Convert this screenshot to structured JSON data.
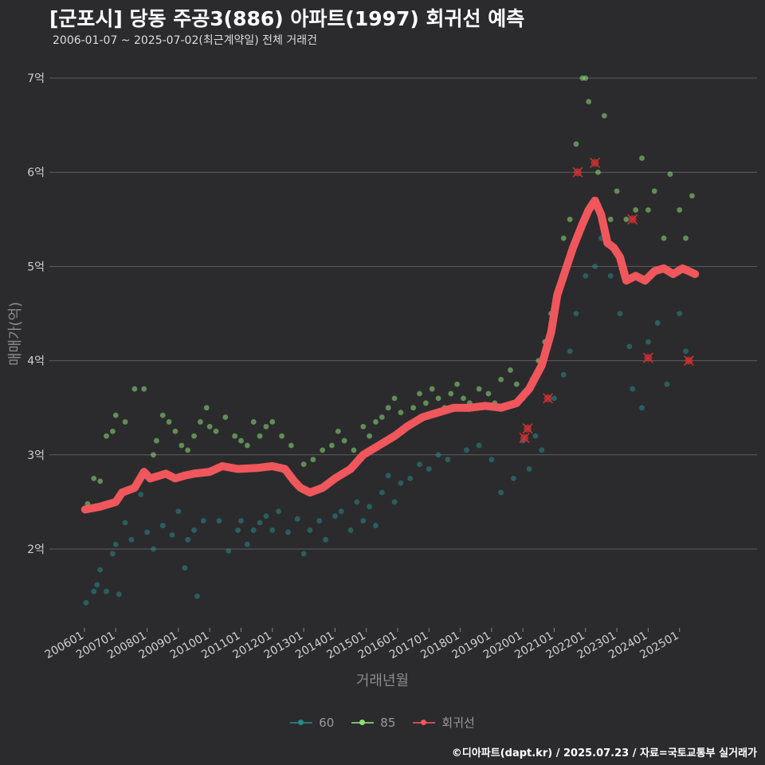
{
  "title": "[군포시] 당동 주공3(886) 아파트(1997) 회귀선 예측",
  "subtitle": "2006-01-07 ~ 2025-07-02(최근계약일) 전체 거래건",
  "caption": "©디아파트(dapt.kr) / 2025.07.23 / 자료=국토교통부 실거래가",
  "colors": {
    "background": "#2b2b2d",
    "grid": "#5e5e5e",
    "s60": "#2a8a8c",
    "s85": "#8ee07a",
    "regression": "#f0575c",
    "outlier": "#d43030"
  },
  "chart_data": {
    "type": "scatter",
    "xlabel": "거래년월",
    "ylabel": "매매가(억)",
    "x_ticks": [
      "200601",
      "200701",
      "200801",
      "200901",
      "201001",
      "201101",
      "201201",
      "201301",
      "201401",
      "201501",
      "201601",
      "201701",
      "201801",
      "201901",
      "202001",
      "202101",
      "202201",
      "202301",
      "202401",
      "202501"
    ],
    "y_ticks": [
      "2억",
      "3억",
      "4억",
      "5억",
      "6억",
      "7억"
    ],
    "y_tick_values": [
      2,
      3,
      4,
      5,
      6,
      7
    ],
    "xlim": [
      "2005-11",
      "2026-06"
    ],
    "ylim": [
      1.15,
      7.35
    ],
    "grid": "horizontal",
    "legend_position": "bottom",
    "legend": [
      "60",
      "85",
      "회귀선"
    ],
    "series": [
      {
        "name": "60",
        "points": [
          [
            2006.05,
            1.43
          ],
          [
            2006.3,
            1.55
          ],
          [
            2006.4,
            1.62
          ],
          [
            2006.5,
            1.78
          ],
          [
            2006.7,
            1.55
          ],
          [
            2006.9,
            1.95
          ],
          [
            2007.0,
            2.05
          ],
          [
            2007.1,
            1.52
          ],
          [
            2007.3,
            2.28
          ],
          [
            2007.5,
            2.1
          ],
          [
            2007.8,
            2.58
          ],
          [
            2008.0,
            2.18
          ],
          [
            2008.2,
            2.0
          ],
          [
            2008.5,
            2.25
          ],
          [
            2008.8,
            2.15
          ],
          [
            2009.0,
            2.4
          ],
          [
            2009.2,
            1.8
          ],
          [
            2009.3,
            2.1
          ],
          [
            2009.5,
            2.2
          ],
          [
            2009.6,
            1.5
          ],
          [
            2009.8,
            2.3
          ],
          [
            2010.3,
            2.3
          ],
          [
            2010.6,
            1.98
          ],
          [
            2010.9,
            2.2
          ],
          [
            2011.0,
            2.3
          ],
          [
            2011.2,
            2.05
          ],
          [
            2011.4,
            2.2
          ],
          [
            2011.6,
            2.28
          ],
          [
            2011.8,
            2.35
          ],
          [
            2012.0,
            2.2
          ],
          [
            2012.2,
            2.4
          ],
          [
            2012.5,
            2.18
          ],
          [
            2012.8,
            2.32
          ],
          [
            2013.0,
            1.95
          ],
          [
            2013.2,
            2.2
          ],
          [
            2013.5,
            2.3
          ],
          [
            2013.7,
            2.1
          ],
          [
            2014.0,
            2.35
          ],
          [
            2014.2,
            2.4
          ],
          [
            2014.5,
            2.2
          ],
          [
            2014.7,
            2.5
          ],
          [
            2014.9,
            2.3
          ],
          [
            2015.1,
            2.45
          ],
          [
            2015.3,
            2.25
          ],
          [
            2015.5,
            2.6
          ],
          [
            2015.7,
            2.78
          ],
          [
            2015.9,
            2.5
          ],
          [
            2016.1,
            2.7
          ],
          [
            2016.4,
            2.75
          ],
          [
            2016.7,
            2.9
          ],
          [
            2017.0,
            2.85
          ],
          [
            2017.3,
            3.0
          ],
          [
            2017.6,
            2.95
          ],
          [
            2018.2,
            3.05
          ],
          [
            2018.6,
            3.1
          ],
          [
            2019.0,
            2.95
          ],
          [
            2019.3,
            2.6
          ],
          [
            2019.7,
            2.75
          ],
          [
            2020.0,
            3.15
          ],
          [
            2020.2,
            2.85
          ],
          [
            2020.4,
            3.2
          ],
          [
            2020.6,
            3.05
          ],
          [
            2021.0,
            3.6
          ],
          [
            2021.3,
            3.85
          ],
          [
            2021.5,
            4.1
          ],
          [
            2021.7,
            4.5
          ],
          [
            2022.0,
            4.9
          ],
          [
            2022.3,
            5.0
          ],
          [
            2022.5,
            5.3
          ],
          [
            2022.8,
            4.9
          ],
          [
            2023.1,
            4.5
          ],
          [
            2023.4,
            4.15
          ],
          [
            2023.5,
            3.7
          ],
          [
            2023.8,
            3.5
          ],
          [
            2024.0,
            4.2
          ],
          [
            2024.3,
            4.4
          ],
          [
            2024.6,
            3.75
          ],
          [
            2025.0,
            4.5
          ],
          [
            2025.2,
            4.1
          ]
        ]
      },
      {
        "name": "85",
        "points": [
          [
            2006.1,
            2.48
          ],
          [
            2006.3,
            2.75
          ],
          [
            2006.5,
            2.72
          ],
          [
            2006.7,
            3.2
          ],
          [
            2006.9,
            3.25
          ],
          [
            2007.0,
            3.42
          ],
          [
            2007.3,
            3.35
          ],
          [
            2007.6,
            3.7
          ],
          [
            2007.9,
            3.7
          ],
          [
            2008.2,
            3.0
          ],
          [
            2008.3,
            3.15
          ],
          [
            2008.5,
            3.42
          ],
          [
            2008.7,
            3.35
          ],
          [
            2008.9,
            3.25
          ],
          [
            2009.1,
            3.1
          ],
          [
            2009.3,
            3.05
          ],
          [
            2009.5,
            3.2
          ],
          [
            2009.7,
            3.35
          ],
          [
            2009.9,
            3.5
          ],
          [
            2010.0,
            3.3
          ],
          [
            2010.2,
            3.25
          ],
          [
            2010.5,
            3.4
          ],
          [
            2010.8,
            3.2
          ],
          [
            2011.0,
            3.15
          ],
          [
            2011.2,
            3.1
          ],
          [
            2011.4,
            3.35
          ],
          [
            2011.6,
            3.2
          ],
          [
            2011.8,
            3.3
          ],
          [
            2012.0,
            3.35
          ],
          [
            2012.3,
            3.2
          ],
          [
            2012.6,
            3.1
          ],
          [
            2013.0,
            2.9
          ],
          [
            2013.3,
            2.95
          ],
          [
            2013.6,
            3.05
          ],
          [
            2013.9,
            3.1
          ],
          [
            2014.1,
            3.25
          ],
          [
            2014.3,
            3.15
          ],
          [
            2014.6,
            3.05
          ],
          [
            2014.9,
            3.3
          ],
          [
            2015.1,
            3.2
          ],
          [
            2015.3,
            3.35
          ],
          [
            2015.5,
            3.4
          ],
          [
            2015.7,
            3.5
          ],
          [
            2015.9,
            3.6
          ],
          [
            2016.1,
            3.45
          ],
          [
            2016.3,
            3.3
          ],
          [
            2016.5,
            3.5
          ],
          [
            2016.7,
            3.65
          ],
          [
            2016.9,
            3.55
          ],
          [
            2017.1,
            3.7
          ],
          [
            2017.3,
            3.6
          ],
          [
            2017.5,
            3.5
          ],
          [
            2017.7,
            3.65
          ],
          [
            2017.9,
            3.75
          ],
          [
            2018.1,
            3.6
          ],
          [
            2018.3,
            3.55
          ],
          [
            2018.6,
            3.7
          ],
          [
            2018.9,
            3.65
          ],
          [
            2019.1,
            3.55
          ],
          [
            2019.3,
            3.8
          ],
          [
            2019.6,
            3.9
          ],
          [
            2019.8,
            3.75
          ],
          [
            2020.0,
            3.6
          ],
          [
            2020.3,
            3.8
          ],
          [
            2020.5,
            4.0
          ],
          [
            2020.7,
            4.2
          ],
          [
            2020.9,
            4.5
          ],
          [
            2021.1,
            4.7
          ],
          [
            2021.3,
            5.3
          ],
          [
            2021.5,
            5.5
          ],
          [
            2021.7,
            6.3
          ],
          [
            2021.9,
            7.0
          ],
          [
            2022.0,
            7.0
          ],
          [
            2022.1,
            6.75
          ],
          [
            2022.4,
            6.0
          ],
          [
            2022.6,
            6.6
          ],
          [
            2022.8,
            5.5
          ],
          [
            2023.0,
            5.8
          ],
          [
            2023.3,
            5.5
          ],
          [
            2023.6,
            5.6
          ],
          [
            2023.8,
            6.15
          ],
          [
            2024.0,
            5.6
          ],
          [
            2024.2,
            5.8
          ],
          [
            2024.5,
            5.3
          ],
          [
            2024.7,
            5.98
          ],
          [
            2025.0,
            5.6
          ],
          [
            2025.2,
            5.3
          ],
          [
            2025.4,
            5.75
          ]
        ]
      },
      {
        "name": "회귀선",
        "points": [
          [
            2006.02,
            2.42
          ],
          [
            2006.5,
            2.45
          ],
          [
            2007.0,
            2.5
          ],
          [
            2007.2,
            2.6
          ],
          [
            2007.6,
            2.65
          ],
          [
            2007.9,
            2.82
          ],
          [
            2008.1,
            2.75
          ],
          [
            2008.6,
            2.8
          ],
          [
            2008.9,
            2.75
          ],
          [
            2009.2,
            2.78
          ],
          [
            2009.5,
            2.8
          ],
          [
            2010.0,
            2.82
          ],
          [
            2010.4,
            2.88
          ],
          [
            2010.9,
            2.85
          ],
          [
            2011.5,
            2.86
          ],
          [
            2012.0,
            2.88
          ],
          [
            2012.4,
            2.85
          ],
          [
            2012.7,
            2.72
          ],
          [
            2012.9,
            2.65
          ],
          [
            2013.2,
            2.6
          ],
          [
            2013.6,
            2.65
          ],
          [
            2014.0,
            2.75
          ],
          [
            2014.5,
            2.85
          ],
          [
            2014.9,
            3.0
          ],
          [
            2015.4,
            3.1
          ],
          [
            2015.9,
            3.2
          ],
          [
            2016.3,
            3.3
          ],
          [
            2016.8,
            3.4
          ],
          [
            2017.3,
            3.45
          ],
          [
            2017.8,
            3.5
          ],
          [
            2018.3,
            3.5
          ],
          [
            2018.8,
            3.52
          ],
          [
            2019.3,
            3.5
          ],
          [
            2019.8,
            3.55
          ],
          [
            2020.2,
            3.7
          ],
          [
            2020.6,
            3.95
          ],
          [
            2020.9,
            4.3
          ],
          [
            2021.1,
            4.7
          ],
          [
            2021.4,
            5.0
          ],
          [
            2021.6,
            5.2
          ],
          [
            2021.9,
            5.45
          ],
          [
            2022.1,
            5.6
          ],
          [
            2022.3,
            5.7
          ],
          [
            2022.5,
            5.55
          ],
          [
            2022.7,
            5.25
          ],
          [
            2022.9,
            5.2
          ],
          [
            2023.1,
            5.1
          ],
          [
            2023.3,
            4.85
          ],
          [
            2023.6,
            4.9
          ],
          [
            2023.9,
            4.85
          ],
          [
            2024.2,
            4.95
          ],
          [
            2024.5,
            4.98
          ],
          [
            2024.8,
            4.92
          ],
          [
            2025.1,
            4.98
          ],
          [
            2025.3,
            4.95
          ],
          [
            2025.5,
            4.92
          ]
        ]
      },
      {
        "name": "outliers",
        "points": [
          [
            2020.05,
            3.18
          ],
          [
            2020.15,
            3.28
          ],
          [
            2020.8,
            3.6
          ],
          [
            2021.75,
            6.0
          ],
          [
            2022.3,
            6.1
          ],
          [
            2023.5,
            5.5
          ],
          [
            2024.0,
            4.03
          ],
          [
            2025.3,
            4.0
          ]
        ]
      }
    ]
  }
}
